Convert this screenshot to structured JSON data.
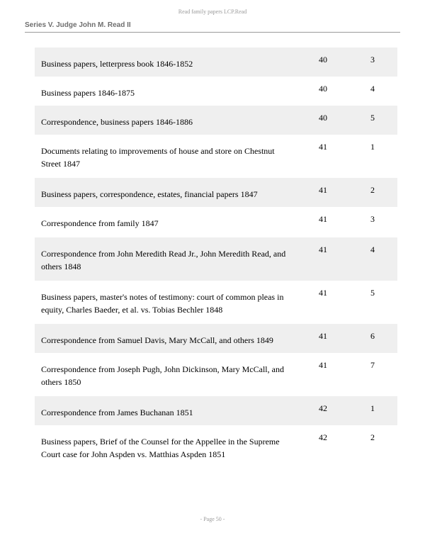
{
  "header": {
    "running_head": "Read family papers  LCP.Read",
    "series_title": "Series V. Judge John M. Read II"
  },
  "rows": [
    {
      "description": "Business papers, letterpress book 1846-1852",
      "box": "40",
      "folder": "3"
    },
    {
      "description": "Business papers 1846-1875",
      "box": "40",
      "folder": "4"
    },
    {
      "description": "Correspondence, business papers 1846-1886",
      "box": "40",
      "folder": "5"
    },
    {
      "description": "Documents relating to improvements of house and store on Chestnut Street 1847",
      "box": "41",
      "folder": "1"
    },
    {
      "description": "Business papers, correspondence, estates, financial papers 1847",
      "box": "41",
      "folder": "2"
    },
    {
      "description": "Correspondence from family 1847",
      "box": "41",
      "folder": "3"
    },
    {
      "description": "Correspondence from John Meredith Read Jr., John Meredith Read, and others 1848",
      "box": "41",
      "folder": "4"
    },
    {
      "description": "Business papers, master's notes of testimony: court of common pleas in equity, Charles Baeder, et al. vs. Tobias Bechler 1848",
      "box": "41",
      "folder": "5"
    },
    {
      "description": "Correspondence from Samuel Davis, Mary McCall, and others 1849",
      "box": "41",
      "folder": "6"
    },
    {
      "description": "Correspondence from Joseph Pugh, John Dickinson, Mary McCall, and others 1850",
      "box": "41",
      "folder": "7"
    },
    {
      "description": "Correspondence from James Buchanan 1851",
      "box": "42",
      "folder": "1"
    },
    {
      "description": "Business papers, Brief of the Counsel for the Appellee in the Supreme Court case for John Aspden vs. Matthias Aspden 1851",
      "box": "42",
      "folder": "2"
    }
  ],
  "footer": {
    "page_label": "- Page 50 -"
  }
}
